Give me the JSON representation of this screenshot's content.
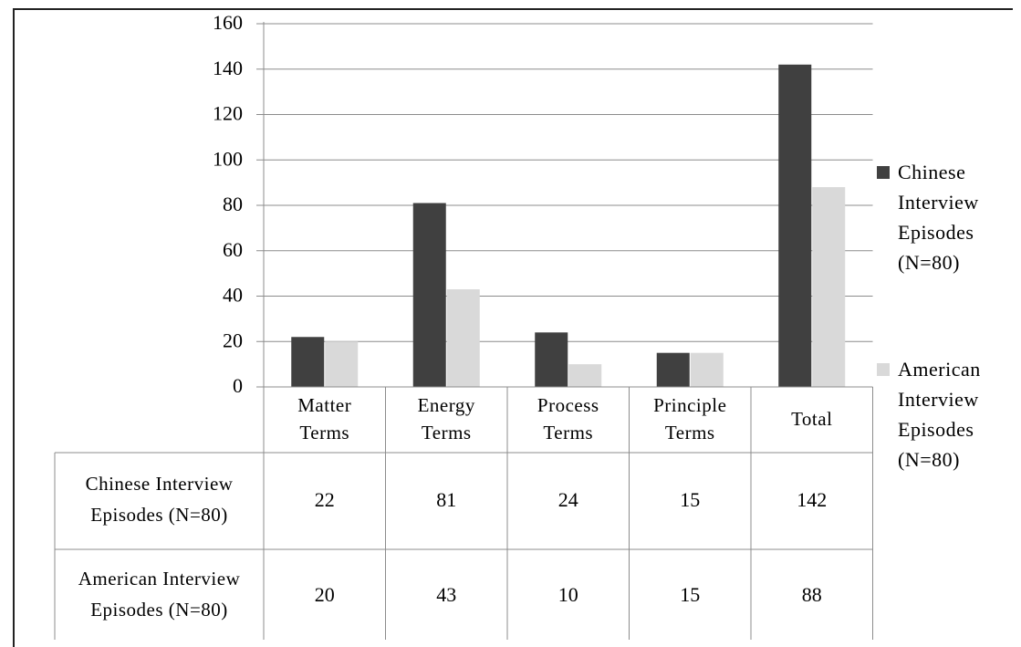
{
  "chart_data": {
    "type": "bar",
    "categories": [
      "Matter Terms",
      "Energy Terms",
      "Process Terms",
      "Principle Terms",
      "Total"
    ],
    "series": [
      {
        "name": "Chinese Interview Episodes (N=80)",
        "values": [
          22,
          81,
          24,
          15,
          142
        ],
        "color": "#404040"
      },
      {
        "name": "American Interview Episodes (N=80)",
        "values": [
          20,
          43,
          10,
          15,
          88
        ],
        "color": "#d9d9d9"
      }
    ],
    "ylim": [
      0,
      160
    ],
    "yticks": [
      0,
      20,
      40,
      60,
      80,
      100,
      120,
      140,
      160
    ],
    "grid": true,
    "legend_position": "right",
    "data_table": true,
    "title": "",
    "xlabel": "",
    "ylabel": ""
  }
}
